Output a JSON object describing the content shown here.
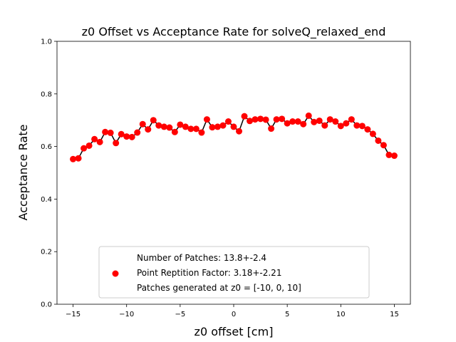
{
  "chart_data": {
    "type": "scatter",
    "title": "z0 Offset vs Acceptance Rate for solveQ_relaxed_end",
    "xlabel": "z0 offset [cm]",
    "ylabel": "Acceptance Rate",
    "xlim": [
      -16.5,
      16.5
    ],
    "ylim": [
      0.0,
      1.0
    ],
    "xticks": [
      -15,
      -10,
      -5,
      0,
      5,
      10,
      15
    ],
    "xtick_labels": [
      "−15",
      "−10",
      "−5",
      "0",
      "5",
      "10",
      "15"
    ],
    "yticks": [
      0.0,
      0.2,
      0.4,
      0.6,
      0.8,
      1.0
    ],
    "ytick_labels": [
      "0.0",
      "0.2",
      "0.4",
      "0.6",
      "0.8",
      "1.0"
    ],
    "grid": false,
    "legend_position": "lower-center",
    "colors": {
      "marker": "#ff0000",
      "line": "#000000"
    },
    "legend": [
      "Number of Patches: 13.8+-2.4",
      "Point Reptition Factor: 3.18+-2.21",
      "Patches generated at z0 = [-10, 0, 10]"
    ],
    "x": [
      -15.0,
      -14.5,
      -14.0,
      -13.5,
      -13.0,
      -12.5,
      -12.0,
      -11.5,
      -11.0,
      -10.5,
      -10.0,
      -9.5,
      -9.0,
      -8.5,
      -8.0,
      -7.5,
      -7.0,
      -6.5,
      -6.0,
      -5.5,
      -5.0,
      -4.5,
      -4.0,
      -3.5,
      -3.0,
      -2.5,
      -2.0,
      -1.5,
      -1.0,
      -0.5,
      0.0,
      0.5,
      1.0,
      1.5,
      2.0,
      2.5,
      3.0,
      3.5,
      4.0,
      4.5,
      5.0,
      5.5,
      6.0,
      6.5,
      7.0,
      7.5,
      8.0,
      8.5,
      9.0,
      9.5,
      10.0,
      10.5,
      11.0,
      11.5,
      12.0,
      12.5,
      13.0,
      13.5,
      14.0,
      14.5,
      15.0
    ],
    "y": [
      0.552,
      0.555,
      0.593,
      0.603,
      0.628,
      0.617,
      0.655,
      0.652,
      0.613,
      0.647,
      0.638,
      0.636,
      0.653,
      0.685,
      0.665,
      0.7,
      0.68,
      0.675,
      0.672,
      0.655,
      0.683,
      0.675,
      0.667,
      0.667,
      0.653,
      0.703,
      0.673,
      0.675,
      0.68,
      0.695,
      0.675,
      0.658,
      0.715,
      0.697,
      0.703,
      0.705,
      0.702,
      0.668,
      0.703,
      0.705,
      0.688,
      0.695,
      0.695,
      0.685,
      0.717,
      0.693,
      0.698,
      0.68,
      0.703,
      0.695,
      0.678,
      0.688,
      0.703,
      0.68,
      0.678,
      0.665,
      0.648,
      0.622,
      0.605,
      0.568,
      0.565
    ]
  }
}
